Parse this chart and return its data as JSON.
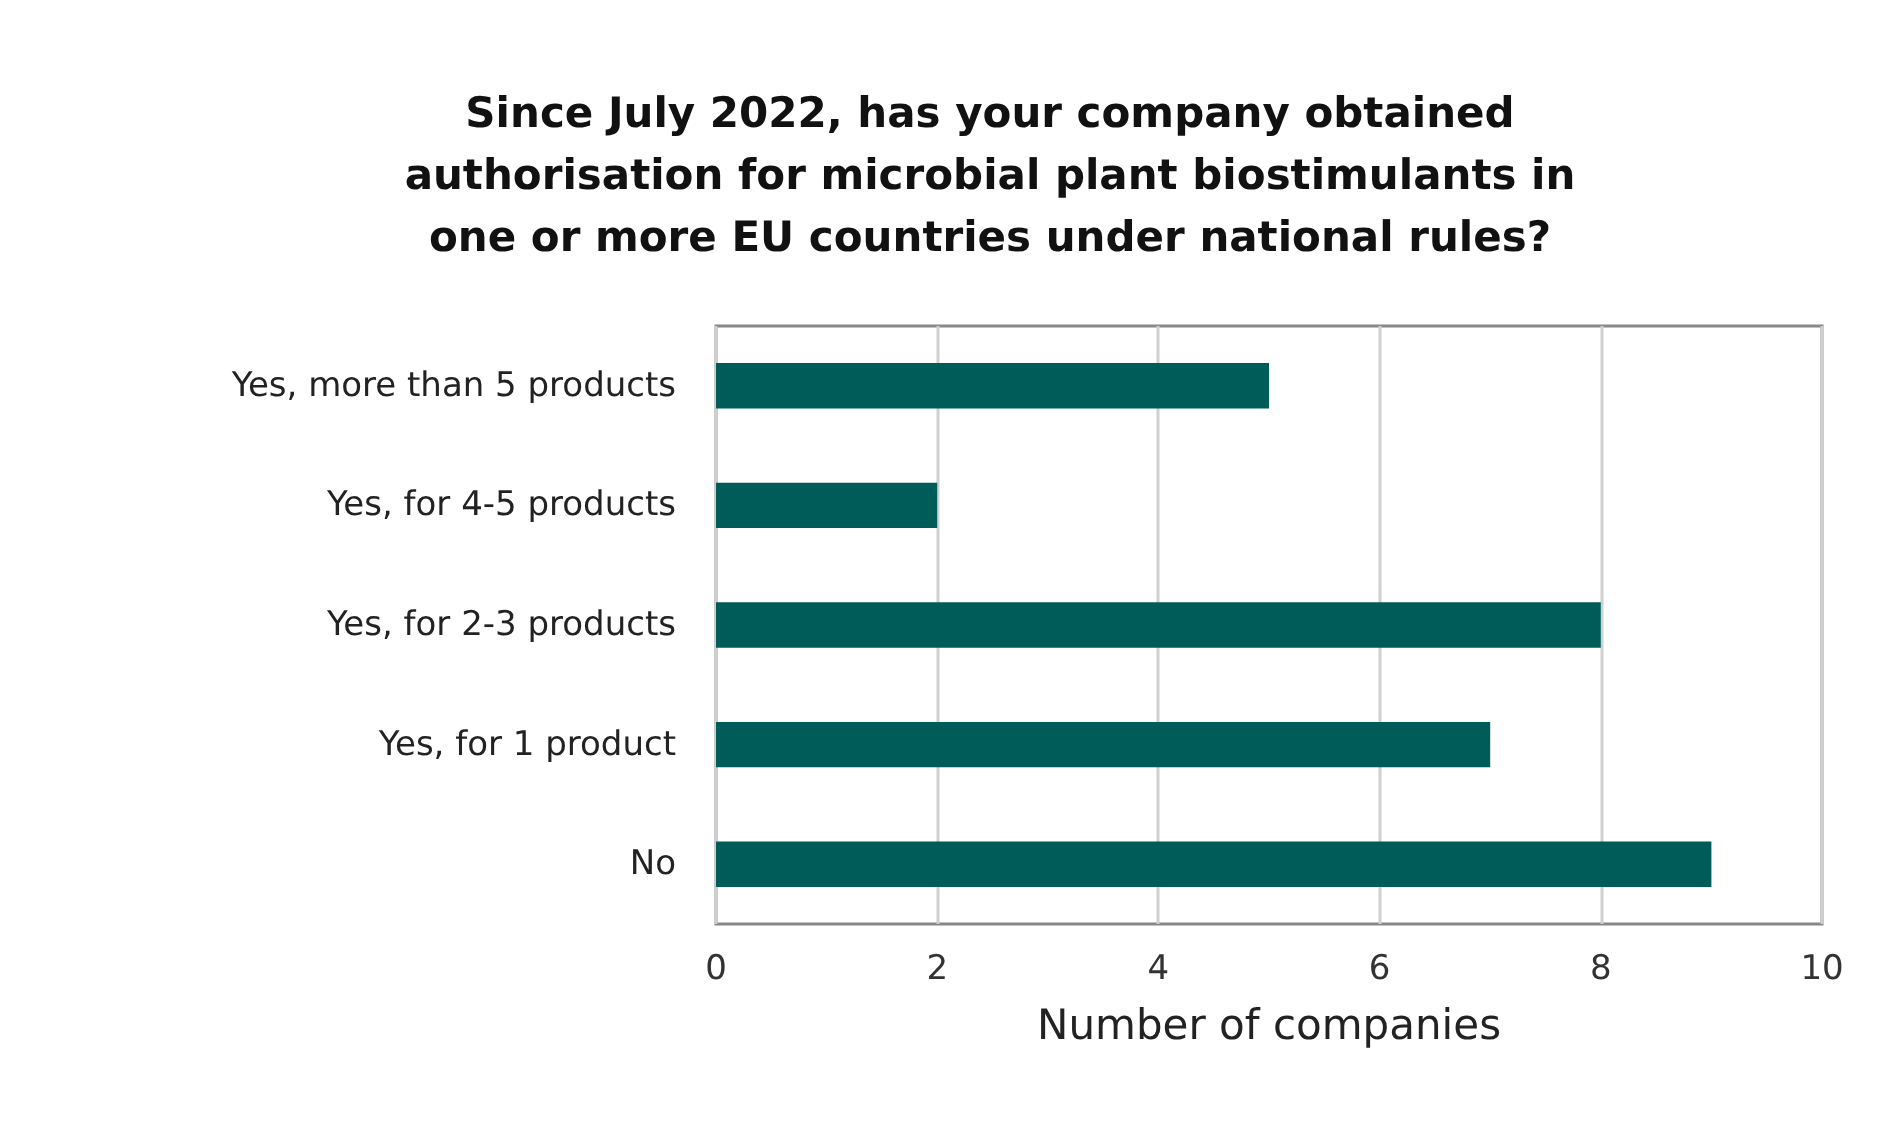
{
  "chart_data": {
    "type": "bar",
    "orientation": "horizontal",
    "title": "Since July 2022, has your company obtained\nauthorisation for microbial plant biostimulants in\none or more EU countries under national rules?",
    "xlabel": "Number of companies",
    "categories": [
      "Yes, more than 5 products",
      "Yes, for 4-5 products",
      "Yes, for 2-3 products",
      "Yes, for 1 product",
      "No"
    ],
    "values": [
      5,
      2,
      8,
      7,
      9
    ],
    "color": "#005c58",
    "xlim": [
      0,
      10
    ],
    "xticks": [
      0,
      2,
      4,
      6,
      8,
      10
    ],
    "grid": "x"
  }
}
